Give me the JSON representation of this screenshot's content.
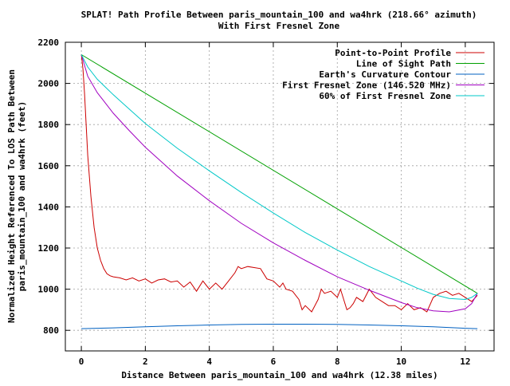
{
  "chart_data": {
    "type": "line",
    "title": "SPLAT! Path Profile Between paris_mountain_100 and wa4hrk (218.66° azimuth)",
    "subtitle": "With First Fresnel Zone",
    "xlabel": "Distance Between paris_mountain_100 and wa4hrk (12.38 miles)",
    "ylabel": "Normalized Height Referenced To LOS Path Between paris_mountain_100 and wa4hrk (feet)",
    "ylabel_lines": [
      "Normalized Height Referenced To LOS Path Between",
      "paris_mountain_100 and wa4hrk (feet)"
    ],
    "xlim": [
      -0.5,
      12.9
    ],
    "ylim": [
      700,
      2200
    ],
    "xticks": [
      0,
      2,
      4,
      6,
      8,
      10,
      12
    ],
    "yticks": [
      800,
      1000,
      1200,
      1400,
      1600,
      1800,
      2000,
      2200
    ],
    "grid": true,
    "legend_position": "top-right",
    "series": [
      {
        "name": "Point-to-Point Profile",
        "color": "#cc0000",
        "x": [
          0,
          0.05,
          0.1,
          0.15,
          0.2,
          0.3,
          0.4,
          0.5,
          0.6,
          0.7,
          0.8,
          0.9,
          1.0,
          1.2,
          1.4,
          1.6,
          1.8,
          2.0,
          2.2,
          2.4,
          2.6,
          2.8,
          3.0,
          3.2,
          3.4,
          3.6,
          3.8,
          4.0,
          4.2,
          4.4,
          4.6,
          4.8,
          4.9,
          5.0,
          5.2,
          5.4,
          5.6,
          5.8,
          6.0,
          6.2,
          6.3,
          6.4,
          6.6,
          6.8,
          6.9,
          7.0,
          7.2,
          7.4,
          7.5,
          7.6,
          7.8,
          8.0,
          8.1,
          8.2,
          8.3,
          8.4,
          8.5,
          8.6,
          8.8,
          9.0,
          9.2,
          9.4,
          9.6,
          9.8,
          10.0,
          10.2,
          10.4,
          10.6,
          10.8,
          11.0,
          11.2,
          11.4,
          11.6,
          11.8,
          12.0,
          12.2,
          12.38
        ],
        "values": [
          2140,
          2070,
          1950,
          1800,
          1650,
          1450,
          1300,
          1200,
          1140,
          1100,
          1075,
          1065,
          1060,
          1055,
          1045,
          1055,
          1040,
          1050,
          1030,
          1045,
          1050,
          1035,
          1040,
          1010,
          1035,
          990,
          1040,
          1000,
          1030,
          1000,
          1040,
          1080,
          1110,
          1100,
          1110,
          1105,
          1100,
          1050,
          1040,
          1010,
          1030,
          1000,
          990,
          950,
          900,
          920,
          890,
          950,
          1000,
          980,
          990,
          960,
          1000,
          950,
          900,
          910,
          930,
          960,
          940,
          1000,
          960,
          940,
          920,
          920,
          900,
          930,
          900,
          910,
          890,
          960,
          980,
          990,
          970,
          980,
          960,
          940,
          970
        ]
      },
      {
        "name": "Line of Sight Path",
        "color": "#00a000",
        "x": [
          0,
          12.38
        ],
        "values": [
          2140,
          980
        ]
      },
      {
        "name": "Earth's Curvature Contour",
        "color": "#0060c0",
        "x": [
          0,
          1,
          2,
          3,
          4,
          5,
          6,
          7,
          8,
          9,
          10,
          11,
          12,
          12.38
        ],
        "values": [
          808,
          812,
          817,
          822,
          826,
          829,
          830,
          830,
          829,
          826,
          822,
          817,
          810,
          808
        ]
      },
      {
        "name": "First Fresnel Zone (146.520 MHz)",
        "color": "#a000c0",
        "x": [
          0,
          0.2,
          0.5,
          1,
          1.5,
          2,
          3,
          4,
          5,
          6,
          7,
          8,
          9,
          10,
          10.5,
          11,
          11.5,
          12,
          12.2,
          12.38
        ],
        "values": [
          2140,
          2035,
          1955,
          1855,
          1770,
          1690,
          1550,
          1430,
          1320,
          1225,
          1140,
          1060,
          995,
          935,
          910,
          895,
          890,
          905,
          930,
          980
        ]
      },
      {
        "name": "60% of First Fresnel Zone",
        "color": "#00c8c8",
        "x": [
          0,
          0.2,
          0.5,
          1,
          1.5,
          2,
          3,
          4,
          5,
          6,
          7,
          8,
          9,
          10,
          10.5,
          11,
          11.5,
          12,
          12.2,
          12.38
        ],
        "values": [
          2140,
          2080,
          2020,
          1945,
          1875,
          1805,
          1685,
          1575,
          1470,
          1370,
          1275,
          1190,
          1110,
          1040,
          1005,
          975,
          955,
          950,
          960,
          980
        ]
      }
    ]
  }
}
